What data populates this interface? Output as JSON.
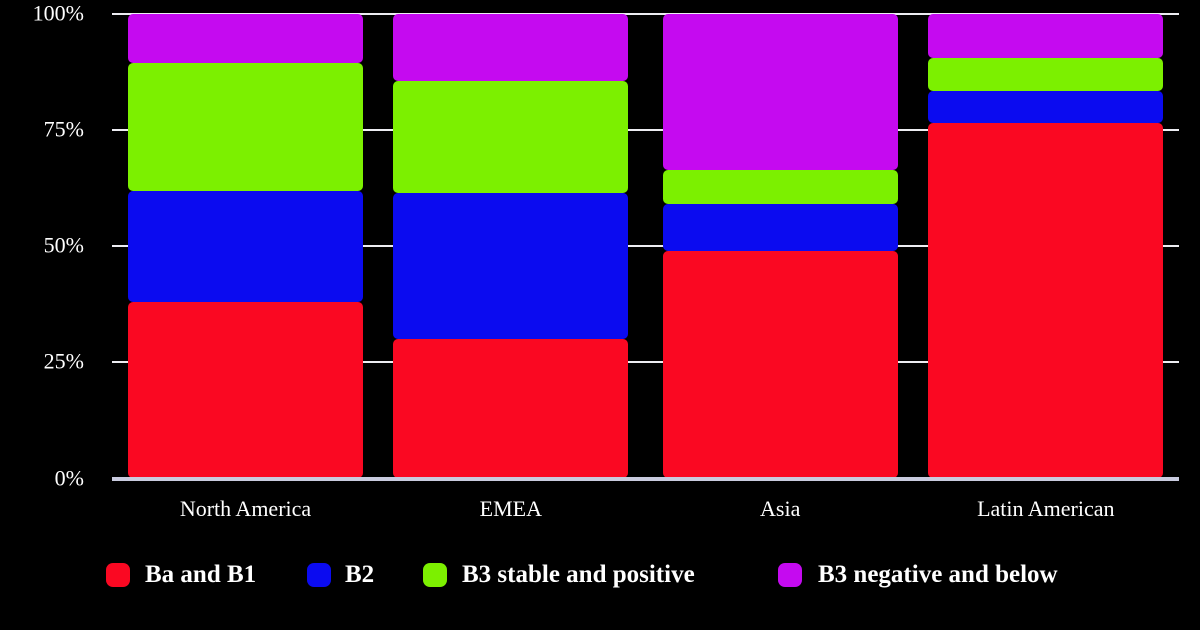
{
  "background": "#000000",
  "text_color": "#FFFFFF",
  "axis": {
    "gridline_color": "#EDEDF2",
    "baseline_color": "#C9CBDF",
    "tick_labels": [
      "100%",
      "75%",
      "50%",
      "25%",
      "0%"
    ],
    "tick_percents": [
      100,
      75,
      50,
      25,
      0
    ]
  },
  "chart_data": {
    "type": "bar",
    "stacked": true,
    "percent_stacked": true,
    "title": "",
    "xlabel": "",
    "ylabel": "",
    "ylim": [
      0,
      100
    ],
    "yticks": [
      "0%",
      "25%",
      "50%",
      "75%",
      "100%"
    ],
    "grid": true,
    "legend_position": "bottom",
    "categories": [
      "North America",
      "EMEA",
      "Asia",
      "Latin American"
    ],
    "series": [
      {
        "name": "Ba and B1",
        "color": "#FA0822",
        "values": [
          38,
          30,
          49,
          76.5
        ]
      },
      {
        "name": "B2",
        "color": "#0B0BF0",
        "values": [
          24,
          31.5,
          10,
          7
        ]
      },
      {
        "name": "B3 stable and positive",
        "color": "#7CF000",
        "values": [
          27.5,
          24,
          7.5,
          7
        ]
      },
      {
        "name": "B3 negative and below",
        "color": "#C50AF0",
        "values": [
          10.5,
          14.5,
          33.5,
          9.5
        ]
      }
    ]
  }
}
